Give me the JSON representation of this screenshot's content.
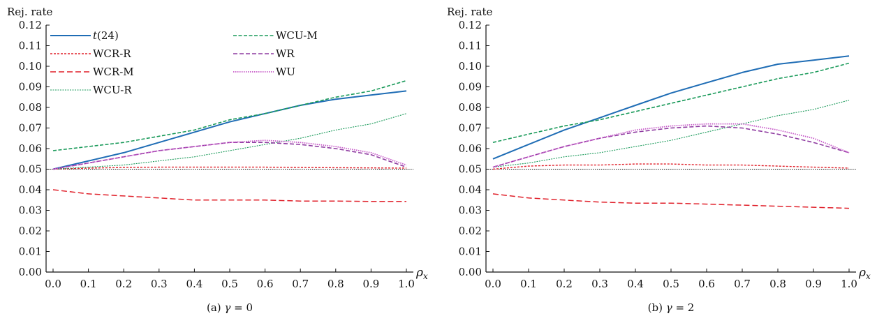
{
  "series_styles": [
    {
      "key": "t24",
      "color": "#1f6db5",
      "dash": "",
      "width": 2.0
    },
    {
      "key": "wcrr",
      "color": "#e0202a",
      "dash": "3 2",
      "width": 1.4
    },
    {
      "key": "wcrm",
      "color": "#e0202a",
      "dash": "8 4",
      "width": 1.5
    },
    {
      "key": "wcur",
      "color": "#1a9a5a",
      "dash": "2 1.5",
      "width": 1.1
    },
    {
      "key": "wcum",
      "color": "#1a9a5a",
      "dash": "5 2.5",
      "width": 1.6
    },
    {
      "key": "wr",
      "color": "#8e3aa0",
      "dash": "6 3",
      "width": 1.6
    },
    {
      "key": "wu",
      "color": "#c658c8",
      "dash": "1.5 1.5",
      "width": 1.8
    }
  ],
  "chart_data": [
    {
      "type": "line",
      "caption_prefix": "(a) ",
      "caption_symbol": "γ",
      "caption_suffix": " = 0",
      "ylabel": "Rej. rate",
      "xlabel": "ρ",
      "xlabel_sub": "x",
      "xlim": [
        0.0,
        1.0
      ],
      "ylim": [
        0.0,
        0.12
      ],
      "xticks": [
        "0.0",
        "0.1",
        "0.2",
        "0.3",
        "0.4",
        "0.5",
        "0.6",
        "0.7",
        "0.8",
        "0.9",
        "1.0"
      ],
      "yticks": [
        "0.00",
        "0.01",
        "0.02",
        "0.03",
        "0.04",
        "0.05",
        "0.06",
        "0.07",
        "0.08",
        "0.09",
        "0.10",
        "0.11",
        "0.12"
      ],
      "reference_line": 0.05,
      "legend_position": "top-left",
      "x": [
        0.0,
        0.1,
        0.2,
        0.3,
        0.4,
        0.5,
        0.6,
        0.7,
        0.8,
        0.9,
        1.0
      ],
      "series": [
        {
          "name": "t(24)",
          "name_italic": "t",
          "name_rest": "(24)",
          "values": [
            0.05,
            0.054,
            0.058,
            0.063,
            0.068,
            0.073,
            0.077,
            0.081,
            0.084,
            0.086,
            0.088
          ]
        },
        {
          "name": "WCR-R",
          "values": [
            0.05,
            0.0505,
            0.0508,
            0.051,
            0.051,
            0.051,
            0.051,
            0.0508,
            0.0507,
            0.0506,
            0.0505
          ]
        },
        {
          "name": "WCR-M",
          "values": [
            0.04,
            0.038,
            0.037,
            0.036,
            0.035,
            0.035,
            0.035,
            0.0345,
            0.0345,
            0.0343,
            0.0343
          ]
        },
        {
          "name": "WCU-R",
          "values": [
            0.05,
            0.051,
            0.052,
            0.054,
            0.056,
            0.059,
            0.062,
            0.065,
            0.069,
            0.072,
            0.077
          ]
        },
        {
          "name": "WCU-M",
          "values": [
            0.059,
            0.061,
            0.063,
            0.066,
            0.069,
            0.074,
            0.077,
            0.081,
            0.085,
            0.088,
            0.093
          ]
        },
        {
          "name": "WR",
          "values": [
            0.05,
            0.053,
            0.056,
            0.059,
            0.061,
            0.063,
            0.063,
            0.062,
            0.06,
            0.057,
            0.051
          ]
        },
        {
          "name": "WU",
          "values": [
            0.05,
            0.053,
            0.056,
            0.059,
            0.061,
            0.063,
            0.064,
            0.063,
            0.061,
            0.058,
            0.052
          ]
        }
      ]
    },
    {
      "type": "line",
      "caption_prefix": "(b) ",
      "caption_symbol": "γ",
      "caption_suffix": " = 2",
      "ylabel": "Rej. rate",
      "xlabel": "ρ",
      "xlabel_sub": "x",
      "xlim": [
        0.0,
        1.0
      ],
      "ylim": [
        0.0,
        0.12
      ],
      "xticks": [
        "0.0",
        "0.1",
        "0.2",
        "0.3",
        "0.4",
        "0.5",
        "0.6",
        "0.7",
        "0.8",
        "0.9",
        "1.0"
      ],
      "yticks": [
        "0.00",
        "0.01",
        "0.02",
        "0.03",
        "0.04",
        "0.05",
        "0.06",
        "0.07",
        "0.08",
        "0.09",
        "0.10",
        "0.11",
        "0.12"
      ],
      "reference_line": 0.05,
      "legend_position": "none",
      "x": [
        0.0,
        0.1,
        0.2,
        0.3,
        0.4,
        0.5,
        0.6,
        0.7,
        0.8,
        0.9,
        1.0
      ],
      "series": [
        {
          "name": "t(24)",
          "values": [
            0.055,
            0.062,
            0.069,
            0.075,
            0.081,
            0.087,
            0.092,
            0.097,
            0.101,
            0.103,
            0.105
          ]
        },
        {
          "name": "WCR-R",
          "values": [
            0.05,
            0.0515,
            0.052,
            0.052,
            0.0525,
            0.0525,
            0.052,
            0.052,
            0.0515,
            0.051,
            0.0505
          ]
        },
        {
          "name": "WCR-M",
          "values": [
            0.038,
            0.036,
            0.035,
            0.034,
            0.0335,
            0.0335,
            0.033,
            0.0325,
            0.032,
            0.0315,
            0.031
          ]
        },
        {
          "name": "WCU-R",
          "values": [
            0.051,
            0.053,
            0.056,
            0.058,
            0.061,
            0.064,
            0.068,
            0.072,
            0.076,
            0.079,
            0.0835
          ]
        },
        {
          "name": "WCU-M",
          "values": [
            0.063,
            0.067,
            0.071,
            0.074,
            0.078,
            0.082,
            0.086,
            0.09,
            0.094,
            0.097,
            0.1015
          ]
        },
        {
          "name": "WR",
          "values": [
            0.051,
            0.056,
            0.061,
            0.065,
            0.068,
            0.07,
            0.071,
            0.07,
            0.067,
            0.063,
            0.058
          ]
        },
        {
          "name": "WU",
          "values": [
            0.051,
            0.056,
            0.061,
            0.065,
            0.069,
            0.071,
            0.072,
            0.072,
            0.069,
            0.065,
            0.058
          ]
        }
      ]
    }
  ]
}
